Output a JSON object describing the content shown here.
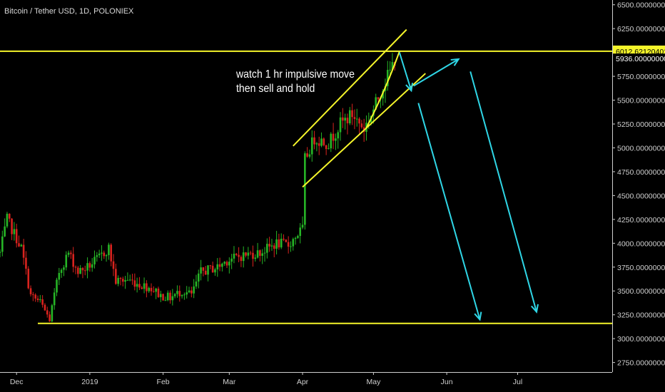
{
  "chart_title": "Bitcoin / Tether USD, 1D, POLONIEX",
  "annotation_lines": [
    "watch 1 hr impulsive move",
    "then sell and hold"
  ],
  "colors": {
    "background": "#000000",
    "up": "#26b526",
    "down": "#d8231e",
    "trendline": "#f5f52a",
    "projection": "#2fd6e6",
    "axis_text": "#cfcfcf",
    "price_tag": "#f5f52a"
  },
  "chart_data": {
    "type": "candlestick",
    "title": "Bitcoin / Tether USD, 1D, POLONIEX",
    "ylim": [
      2650,
      6550
    ],
    "y_ticks": [
      "6500.00000000",
      "6250.00000000",
      "6000.00000000",
      "5750.00000000",
      "5500.00000000",
      "5250.00000000",
      "5000.00000000",
      "4750.00000000",
      "4500.00000000",
      "4250.00000000",
      "4000.00000000",
      "3750.00000000",
      "3500.00000000",
      "3250.00000000",
      "3000.00000000",
      "2750.00000000"
    ],
    "x_ticks": [
      "Dec",
      "2019",
      "Feb",
      "Mar",
      "Apr",
      "May",
      "Jun",
      "Jul"
    ],
    "x_tick_dates": [
      "2018-12-01",
      "2019-01-01",
      "2019-02-01",
      "2019-03-01",
      "2019-04-01",
      "2019-05-01",
      "2019-06-01",
      "2019-07-01"
    ],
    "xlim": [
      "2018-11-24",
      "2019-08-10"
    ],
    "price_labels": [
      {
        "value": 6012.62120401,
        "text": "6012.62120401",
        "style": "highlight"
      },
      {
        "value": 5936.0,
        "text": "5936.00000000",
        "style": "plain"
      }
    ],
    "close_path": [
      [
        "2018-11-24",
        3900
      ],
      [
        "2018-11-27",
        4250
      ],
      [
        "2018-11-30",
        4100
      ],
      [
        "2018-12-03",
        3950
      ],
      [
        "2018-12-07",
        3450
      ],
      [
        "2018-12-11",
        3380
      ],
      [
        "2018-12-15",
        3200
      ],
      [
        "2018-12-19",
        3700
      ],
      [
        "2018-12-23",
        3900
      ],
      [
        "2018-12-27",
        3700
      ],
      [
        "2018-12-31",
        3750
      ],
      [
        "2019-01-05",
        3850
      ],
      [
        "2019-01-09",
        3950
      ],
      [
        "2019-01-12",
        3600
      ],
      [
        "2019-01-17",
        3620
      ],
      [
        "2019-01-22",
        3570
      ],
      [
        "2019-01-27",
        3530
      ],
      [
        "2019-01-31",
        3450
      ],
      [
        "2019-02-04",
        3430
      ],
      [
        "2019-02-09",
        3500
      ],
      [
        "2019-02-13",
        3460
      ],
      [
        "2019-02-17",
        3700
      ],
      [
        "2019-02-24",
        3750
      ],
      [
        "2019-02-28",
        3820
      ],
      [
        "2019-03-05",
        3860
      ],
      [
        "2019-03-08",
        3880
      ],
      [
        "2019-03-14",
        3900
      ],
      [
        "2019-03-21",
        4000
      ],
      [
        "2019-03-26",
        3980
      ],
      [
        "2019-03-30",
        4100
      ],
      [
        "2019-04-01",
        4150
      ],
      [
        "2019-04-02",
        4880
      ],
      [
        "2019-04-06",
        5100
      ],
      [
        "2019-04-12",
        5050
      ],
      [
        "2019-04-17",
        5250
      ],
      [
        "2019-04-22",
        5350
      ],
      [
        "2019-04-27",
        5200
      ],
      [
        "2019-05-01",
        5400
      ],
      [
        "2019-05-05",
        5650
      ],
      [
        "2019-05-08",
        5800
      ],
      [
        "2019-05-10",
        5936
      ]
    ],
    "drawings": {
      "horizontal_lines": [
        {
          "value": 6012.62,
          "from": "2018-11-24",
          "to": "2019-08-10"
        },
        {
          "value": 3160,
          "from": "2018-12-10",
          "to": "2019-08-10"
        }
      ],
      "channel_upper": [
        [
          "2019-03-28",
          5020
        ],
        [
          "2019-05-15",
          6240
        ]
      ],
      "channel_lower": [
        [
          "2019-04-01",
          4590
        ],
        [
          "2019-05-23",
          5780
        ]
      ],
      "impulse_curve": [
        [
          "2019-04-28",
          5210
        ],
        [
          "2019-05-06",
          5600
        ],
        [
          "2019-05-12",
          6010
        ]
      ],
      "arrows": [
        {
          "from": [
            "2019-05-12",
            6000
          ],
          "to": [
            "2019-05-17",
            5600
          ]
        },
        {
          "from": [
            "2019-05-18",
            5650
          ],
          "to": [
            "2019-06-06",
            5930
          ]
        },
        {
          "from": [
            "2019-05-20",
            5470
          ],
          "to": [
            "2019-06-15",
            3200
          ]
        },
        {
          "from": [
            "2019-06-11",
            5800
          ],
          "to": [
            "2019-07-09",
            3280
          ]
        }
      ]
    }
  }
}
